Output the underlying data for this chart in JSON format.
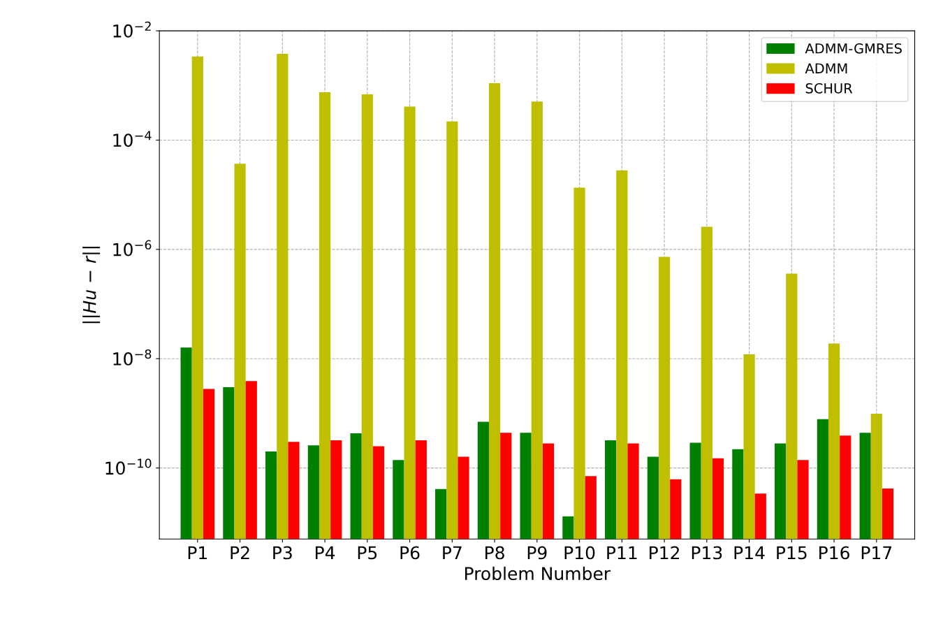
{
  "chart_data": {
    "type": "bar",
    "xlabel": "Problem Number",
    "ylabel": "||Hu − r||",
    "categories": [
      "P1",
      "P2",
      "P3",
      "P4",
      "P5",
      "P6",
      "P7",
      "P8",
      "P9",
      "P10",
      "P11",
      "P12",
      "P13",
      "P14",
      "P15",
      "P16",
      "P17"
    ],
    "series": [
      {
        "name": "ADMM-GMRES",
        "color": "#008000",
        "values": [
          1.6e-08,
          3e-09,
          2e-10,
          2.6e-10,
          4.3e-10,
          1.4e-10,
          4.1e-11,
          7e-10,
          4.4e-10,
          1.3e-11,
          3.2e-10,
          1.6e-10,
          2.9e-10,
          2.2e-10,
          2.8e-10,
          7.8e-10,
          4.4e-10
        ]
      },
      {
        "name": "ADMM",
        "color": "#bfbf00",
        "values": [
          0.0034,
          3.7e-05,
          0.0038,
          0.00075,
          0.00069,
          0.00041,
          0.00022,
          0.0011,
          0.00051,
          1.35e-05,
          2.8e-05,
          7.3e-07,
          2.6e-06,
          1.2e-08,
          3.6e-07,
          1.9e-08,
          9.8e-10
        ]
      },
      {
        "name": "SCHUR",
        "color": "#ff0000",
        "values": [
          2.8e-09,
          3.9e-09,
          3e-10,
          3.2e-10,
          2.5e-10,
          3.2e-10,
          1.6e-10,
          4.4e-10,
          2.8e-10,
          7.1e-11,
          2.8e-10,
          6.2e-11,
          1.5e-10,
          3.4e-11,
          1.4e-10,
          3.9e-10,
          4.2e-11
        ]
      }
    ],
    "log": true,
    "ylim": [
      5e-12,
      0.01
    ],
    "yticks": [
      {
        "value": 1e-10,
        "label": "10$^{−10}$"
      },
      {
        "value": 1e-08,
        "label": "10$^{−8}$"
      },
      {
        "value": 1e-06,
        "label": "10$^{−6}$"
      },
      {
        "value": 0.0001,
        "label": "10$^{−4}$"
      },
      {
        "value": 0.01,
        "label": "10$^{−2}$"
      }
    ],
    "grid": true,
    "legend": "top right"
  }
}
